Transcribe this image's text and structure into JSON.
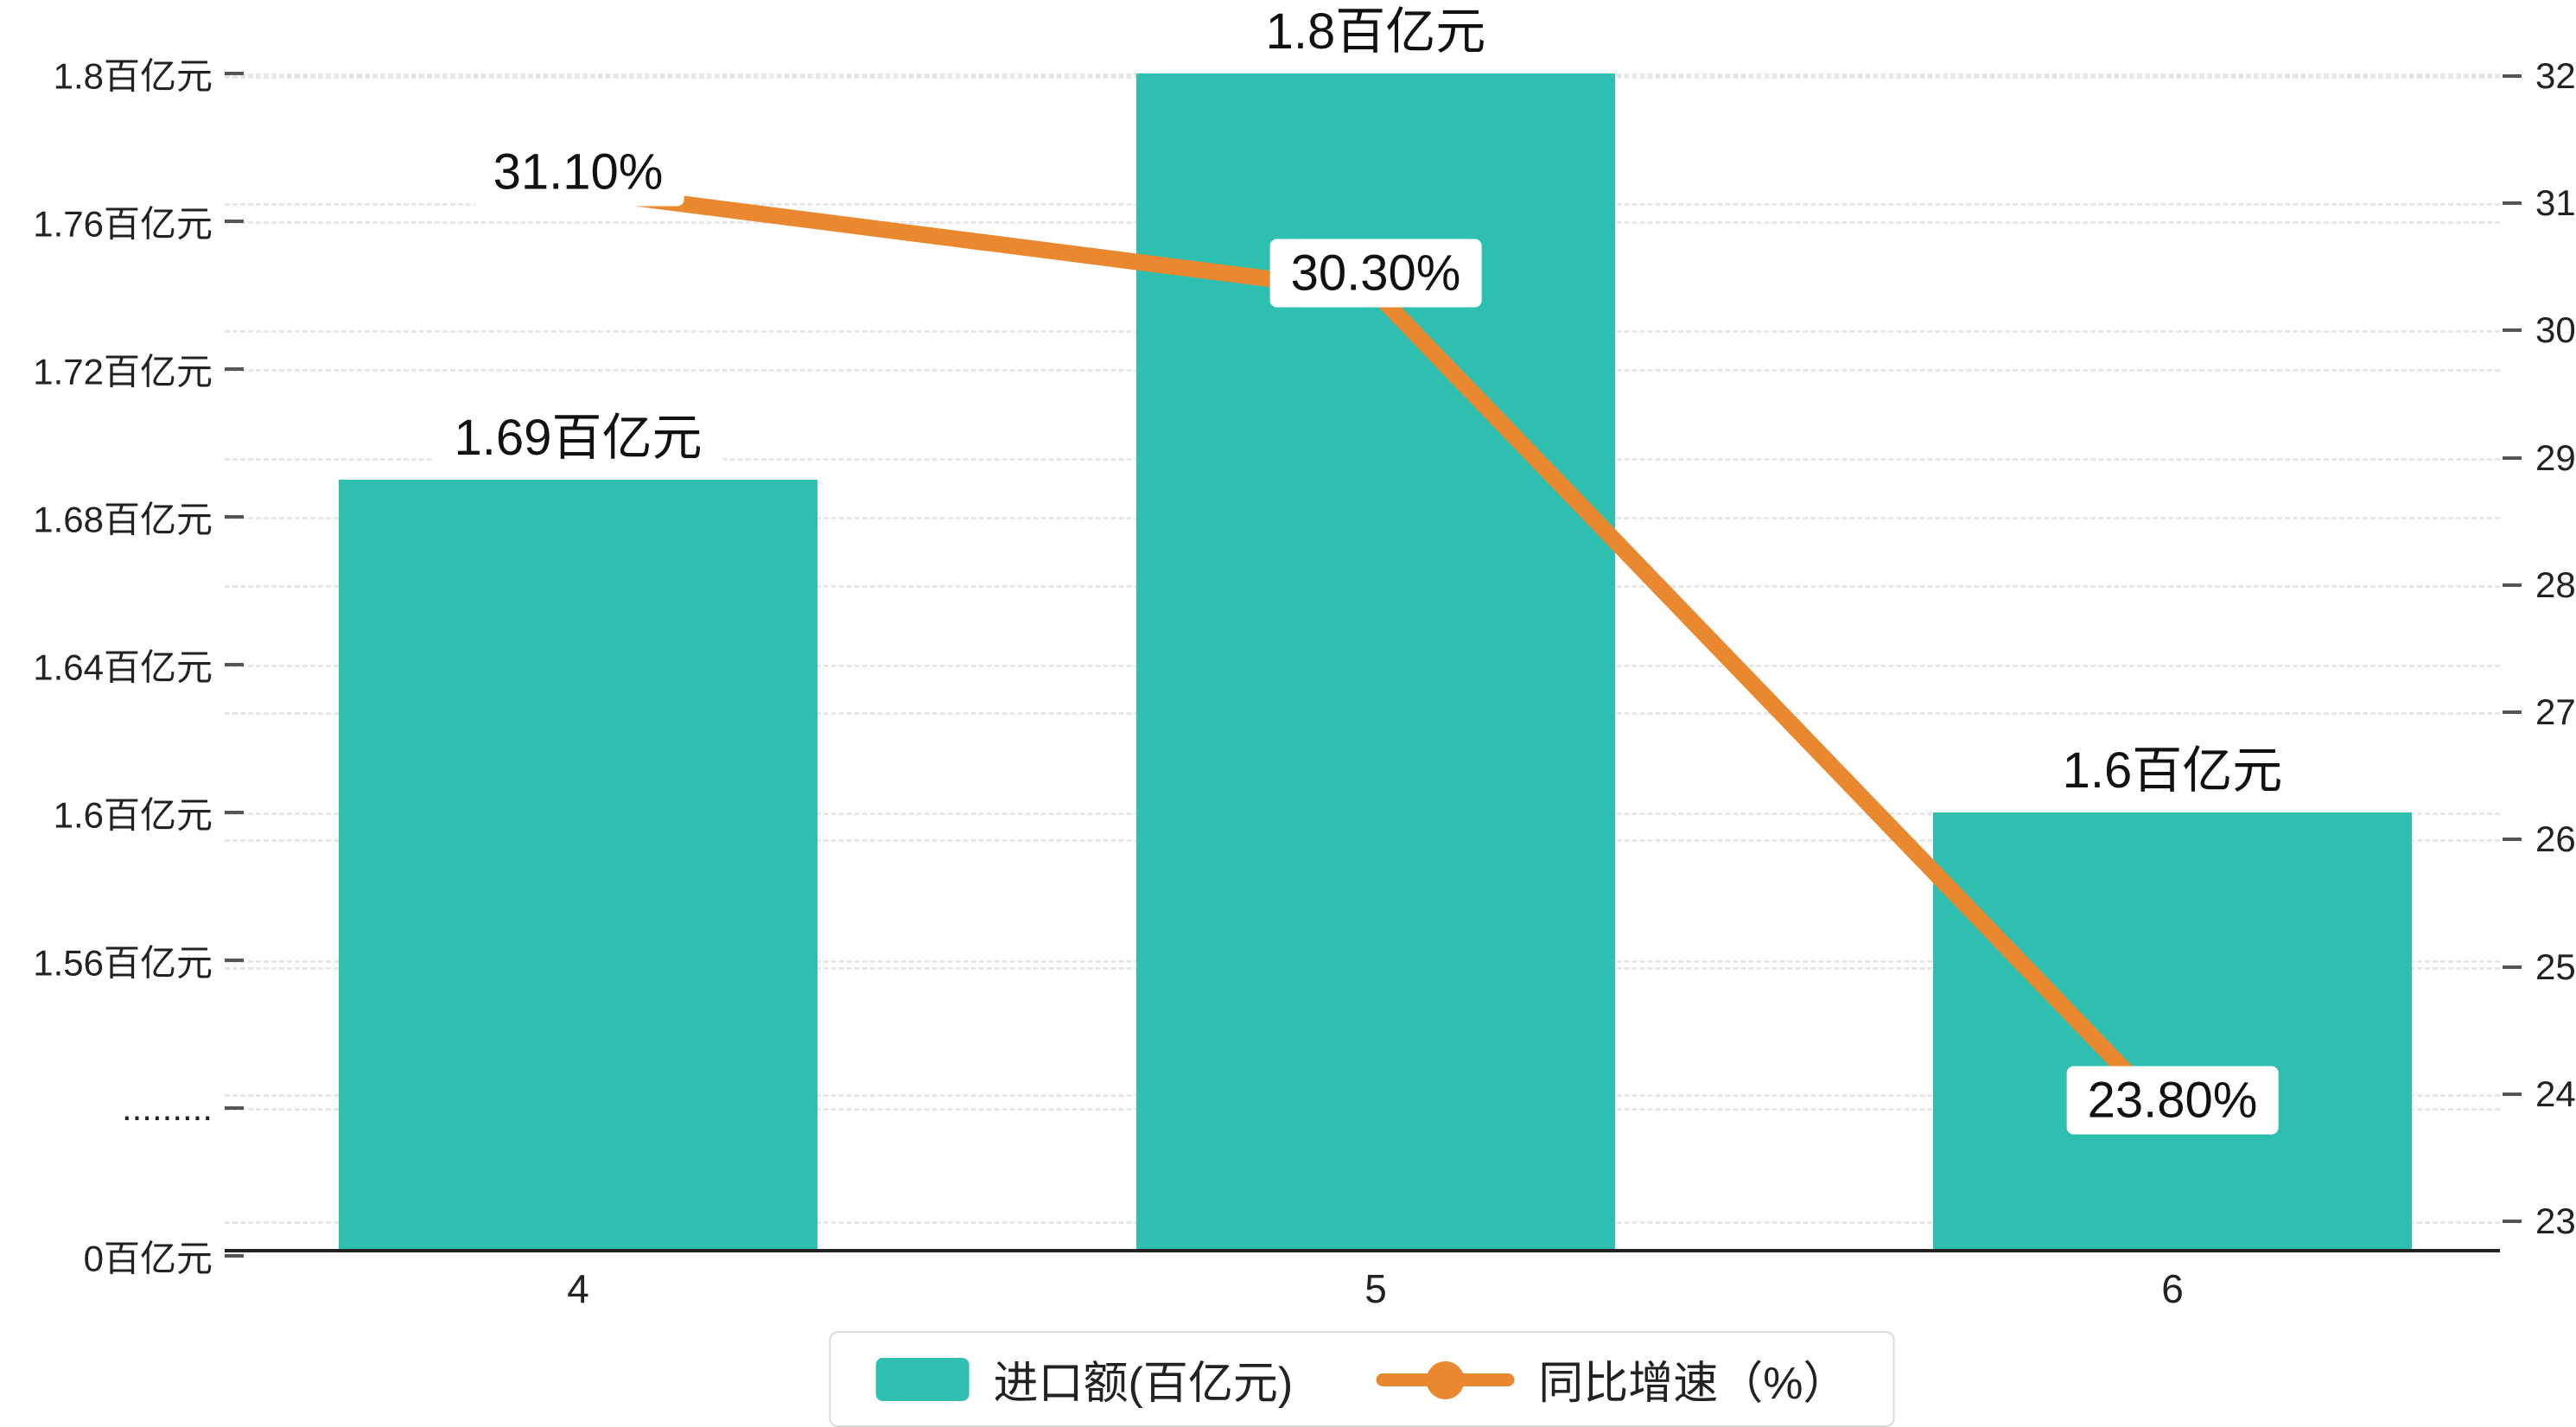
{
  "colors": {
    "bar": "#2FBFB0",
    "line": "#E9882E",
    "grid": "#e7e7e7",
    "axis": "#222222",
    "background": "#ffffff"
  },
  "chart_data": {
    "type": "bar",
    "combo": "bar+line dual axis",
    "categories": [
      "4",
      "5",
      "6"
    ],
    "series": [
      {
        "name": "进口额(百亿元)",
        "type": "bar",
        "axis": "left",
        "color": "#2FBFB0",
        "values": [
          1.69,
          1.8,
          1.6
        ],
        "labels": [
          "1.69百亿元",
          "1.8百亿元",
          "1.6百亿元"
        ]
      },
      {
        "name": "同比增速（%）",
        "type": "line",
        "axis": "right",
        "color": "#E9882E",
        "values": [
          31.1,
          30.3,
          23.8
        ],
        "labels": [
          "31.10%",
          "30.30%",
          "23.80%"
        ]
      }
    ],
    "left_axis": {
      "title": "",
      "has_break": true,
      "ticks": [
        {
          "label": "1.8百亿元",
          "value": 1.8
        },
        {
          "label": "1.76百亿元",
          "value": 1.76
        },
        {
          "label": "1.72百亿元",
          "value": 1.72
        },
        {
          "label": "1.68百亿元",
          "value": 1.68
        },
        {
          "label": "1.64百亿元",
          "value": 1.64
        },
        {
          "label": "1.6百亿元",
          "value": 1.6
        },
        {
          "label": "1.56百亿元",
          "value": 1.56
        },
        {
          "label": ".........",
          "value": null
        },
        {
          "label": "0百亿元",
          "value": 0
        }
      ]
    },
    "right_axis": {
      "min": 23,
      "max": 32,
      "ticks": [
        32,
        31,
        30,
        29,
        28,
        27,
        26,
        25,
        24,
        23
      ]
    },
    "legend": {
      "position": "bottom",
      "items": [
        {
          "label": "进口额(百亿元)",
          "marker": "bar"
        },
        {
          "label": "同比增速（%）",
          "marker": "line"
        }
      ]
    },
    "grid": true
  }
}
